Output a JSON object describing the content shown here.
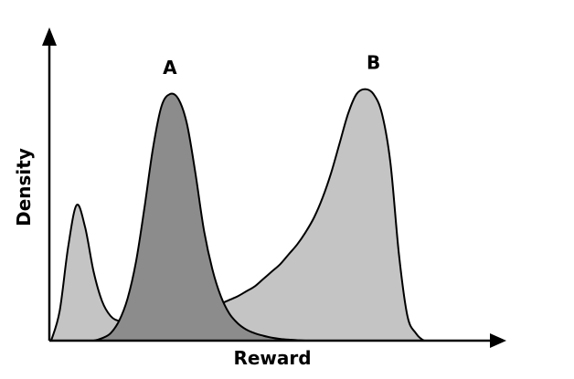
{
  "chart_data": {
    "type": "area",
    "xlabel": "Reward",
    "ylabel": "Density",
    "x_ticks": false,
    "y_ticks": false,
    "grid": false,
    "legend": "none",
    "x": [
      0,
      0.02,
      0.04,
      0.06,
      0.08,
      0.1,
      0.12,
      0.14,
      0.16,
      0.18,
      0.2,
      0.22,
      0.24,
      0.26,
      0.28,
      0.3,
      0.32,
      0.34,
      0.36,
      0.38,
      0.4,
      0.42,
      0.44,
      0.46,
      0.48,
      0.5,
      0.52,
      0.54,
      0.56,
      0.58,
      0.6,
      0.62,
      0.64,
      0.66,
      0.68,
      0.7,
      0.72,
      0.74,
      0.76,
      0.78,
      0.8,
      0.82,
      0.84,
      0.86,
      0.88,
      0.9,
      0.92,
      0.94,
      0.96,
      0.98,
      1.0
    ],
    "series": [
      {
        "name": "B",
        "color": "#c4c4c4",
        "values": [
          0.0,
          0.12,
          0.38,
          0.55,
          0.46,
          0.28,
          0.16,
          0.1,
          0.08,
          0.08,
          0.08,
          0.08,
          0.085,
          0.09,
          0.095,
          0.1,
          0.11,
          0.12,
          0.13,
          0.14,
          0.15,
          0.165,
          0.18,
          0.2,
          0.22,
          0.25,
          0.28,
          0.31,
          0.35,
          0.39,
          0.44,
          0.5,
          0.58,
          0.68,
          0.8,
          0.92,
          1.0,
          1.02,
          1.0,
          0.92,
          0.72,
          0.35,
          0.1,
          0.03,
          0.0,
          0.0,
          0.0,
          0.0,
          0.0,
          0.0,
          0.0
        ]
      },
      {
        "name": "A",
        "color": "#8c8c8c",
        "values": [
          0.0,
          0.0,
          0.0,
          0.0,
          0.0,
          0.0,
          0.01,
          0.03,
          0.08,
          0.17,
          0.32,
          0.54,
          0.78,
          0.95,
          1.0,
          0.98,
          0.88,
          0.68,
          0.45,
          0.29,
          0.18,
          0.11,
          0.07,
          0.045,
          0.03,
          0.02,
          0.012,
          0.007,
          0.004,
          0.002,
          0.0,
          0.0,
          0.0,
          0.0,
          0.0,
          0.0,
          0.0,
          0.0,
          0.0,
          0.0,
          0.0,
          0.0,
          0.0,
          0.0,
          0.0,
          0.0,
          0.0,
          0.0,
          0.0,
          0.0,
          0.0
        ]
      }
    ],
    "peak_labels": [
      {
        "text": "A",
        "x": 0.28
      },
      {
        "text": "B",
        "x": 0.76
      }
    ]
  }
}
